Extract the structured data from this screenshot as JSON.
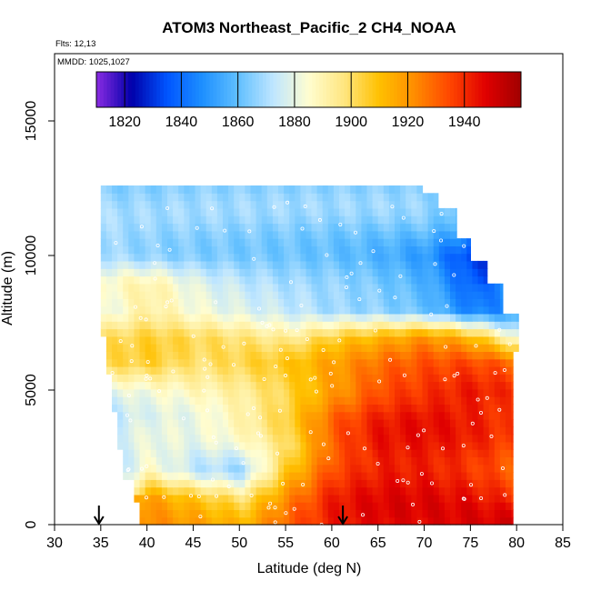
{
  "chart_data": {
    "type": "heatmap",
    "title": "ATOM3 Northeast_Pacific_2 CH4_NOAA",
    "flights_label": "Flts: 12,13",
    "dates_label": "MMDD: 1025,1027",
    "xlabel": "Latitude (deg N)",
    "ylabel": "Altitude (m)",
    "xlim": [
      30,
      85
    ],
    "ylim": [
      0,
      17500
    ],
    "x_ticks": [
      30,
      35,
      40,
      45,
      50,
      55,
      60,
      65,
      70,
      75,
      80,
      85
    ],
    "y_ticks": [
      0,
      5000,
      10000,
      15000
    ],
    "colorbar": {
      "range": [
        1810,
        1960
      ],
      "ticks": [
        1820,
        1840,
        1860,
        1880,
        1900,
        1920,
        1940
      ],
      "colors": [
        "#8a2be2",
        "#0000aa",
        "#0055ff",
        "#1e90ff",
        "#60bfff",
        "#bfe6ff",
        "#fffdd0",
        "#ffe680",
        "#ffc000",
        "#ff8c00",
        "#ff4500",
        "#e00000",
        "#a00000"
      ]
    },
    "arrows_lat": [
      34.8,
      61.2
    ],
    "curtain": {
      "latitudes": [
        35,
        40,
        45,
        50,
        55,
        60,
        65,
        70,
        75,
        80
      ],
      "altitude_bands": [
        {
          "alt": 12000,
          "values": [
            1865,
            1865,
            1866,
            1866,
            1866,
            1866,
            1866,
            1865,
            1855,
            null
          ]
        },
        {
          "alt": 11000,
          "values": [
            1868,
            1866,
            1865,
            1864,
            1863,
            1862,
            1861,
            1860,
            1850,
            null
          ]
        },
        {
          "alt": 10000,
          "values": [
            1872,
            1868,
            1866,
            1865,
            1864,
            1862,
            1858,
            1852,
            1832,
            null
          ]
        },
        {
          "alt": 9000,
          "values": [
            1885,
            1890,
            1878,
            1872,
            1868,
            1866,
            1862,
            1855,
            1835,
            null
          ]
        },
        {
          "alt": 8000,
          "values": [
            1882,
            1895,
            1885,
            1880,
            1876,
            1870,
            1868,
            1862,
            1845,
            1850
          ]
        },
        {
          "alt": 7000,
          "values": [
            1900,
            1905,
            1902,
            1898,
            1893,
            1905,
            1912,
            1920,
            1910,
            1880
          ]
        },
        {
          "alt": 6000,
          "values": [
            1898,
            1902,
            1895,
            1900,
            1905,
            1915,
            1925,
            1930,
            1932,
            1925
          ]
        },
        {
          "alt": 5000,
          "values": [
            1880,
            1885,
            1890,
            1895,
            1905,
            1920,
            1935,
            1940,
            1945,
            1940
          ]
        },
        {
          "alt": 4000,
          "values": [
            1870,
            1878,
            1880,
            1890,
            1905,
            1930,
            1942,
            1945,
            1942,
            1935
          ]
        },
        {
          "alt": 3000,
          "values": [
            1875,
            1882,
            1880,
            1885,
            1900,
            1932,
            1945,
            1945,
            1942,
            1935
          ]
        },
        {
          "alt": 2000,
          "values": [
            1868,
            1890,
            1875,
            1870,
            1912,
            1938,
            1945,
            1945,
            1940,
            1932
          ]
        },
        {
          "alt": 1000,
          "values": [
            null,
            1915,
            1905,
            1895,
            1920,
            1940,
            1945,
            1945,
            1942,
            1935
          ]
        },
        {
          "alt": 0,
          "values": [
            null,
            1922,
            1918,
            1912,
            1930,
            1942,
            1946,
            1946,
            1948,
            1950
          ]
        }
      ]
    }
  }
}
